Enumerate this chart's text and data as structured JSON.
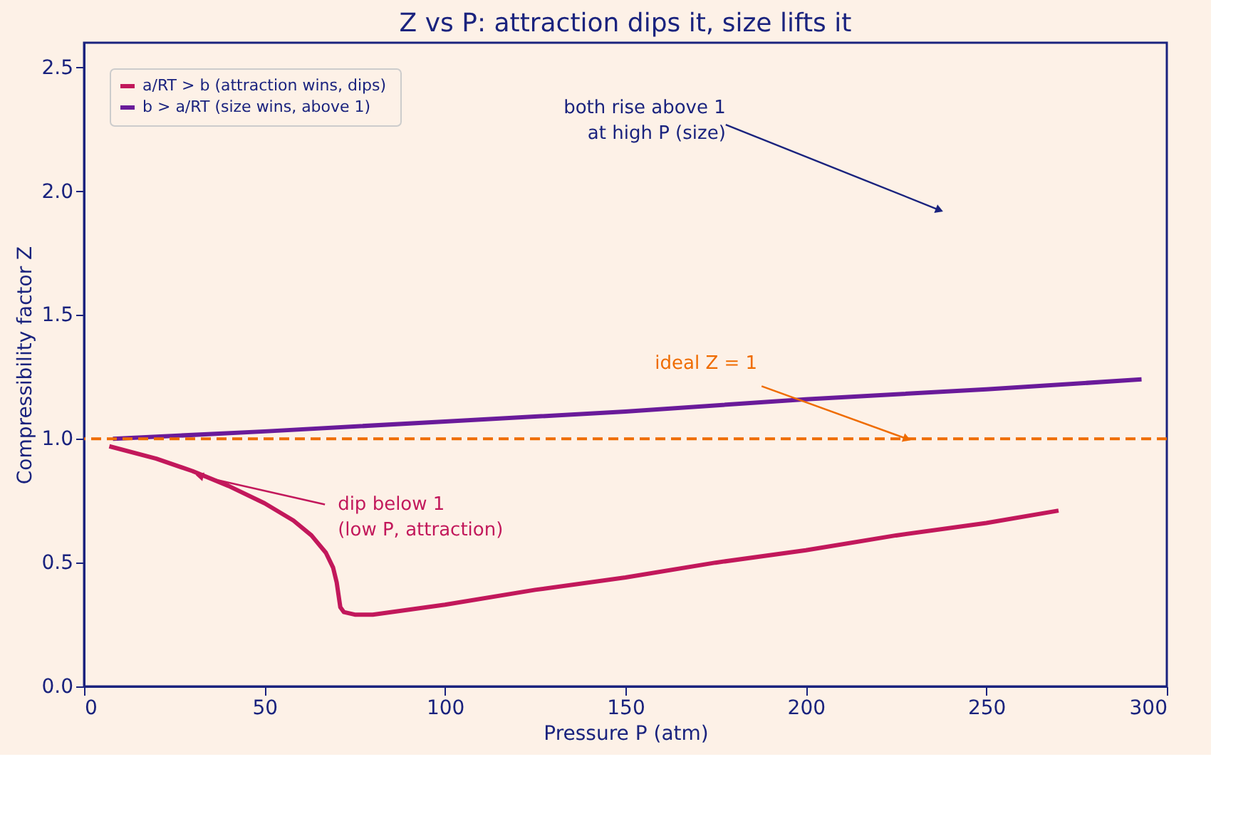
{
  "chart_data": {
    "type": "line",
    "title": "Z vs P: attraction dips it, size lifts it",
    "xlabel": "Pressure  P  (atm)",
    "ylabel": "Compressibility factor  Z",
    "xlim": [
      0,
      300
    ],
    "xticks": [
      0,
      50,
      100,
      150,
      200,
      250,
      300
    ],
    "ylim": [
      0,
      2.6
    ],
    "yticks": [
      {
        "value": 0,
        "label": "0.0"
      },
      {
        "value": 0.5,
        "label": "0.5"
      },
      {
        "value": 1,
        "label": "1.0"
      },
      {
        "value": 1.5,
        "label": "1.5"
      },
      {
        "value": 2,
        "label": "2.0"
      },
      {
        "value": 2.5,
        "label": "2.5"
      }
    ],
    "series": [
      {
        "name": "a/RT > b  (attraction wins, dips)",
        "color": "#c2185b",
        "x": [
          7,
          20,
          30,
          40,
          50,
          58,
          63,
          67,
          69,
          70,
          70.5,
          71,
          72,
          75,
          80,
          90,
          100,
          125,
          150,
          175,
          200,
          225,
          250,
          270
        ],
        "values": [
          0.97,
          0.92,
          0.87,
          0.81,
          0.74,
          0.67,
          0.61,
          0.54,
          0.48,
          0.42,
          0.37,
          0.32,
          0.3,
          0.29,
          0.29,
          0.31,
          0.33,
          0.39,
          0.44,
          0.5,
          0.55,
          0.61,
          0.66,
          0.71
        ]
      },
      {
        "name": "b > a/RT  (size wins, above 1)",
        "color": "#6a1b9a",
        "x": [
          8,
          50,
          100,
          150,
          200,
          250,
          293
        ],
        "values": [
          1.0,
          1.03,
          1.07,
          1.11,
          1.16,
          1.2,
          1.24
        ]
      }
    ],
    "ref_lines": [
      {
        "axis": "y",
        "value": 1,
        "color": "#ef6c00",
        "line_style": "dashed"
      }
    ],
    "annotations": [
      "both rise above 1\nat high P (size)",
      {
        "text": "ideal  Z = 1",
        "x": 228,
        "y": 1.0
      },
      {
        "text": "dip below 1\n(low P, attraction)",
        "x": 32,
        "y": 0.85
      }
    ],
    "legend": "top left"
  }
}
